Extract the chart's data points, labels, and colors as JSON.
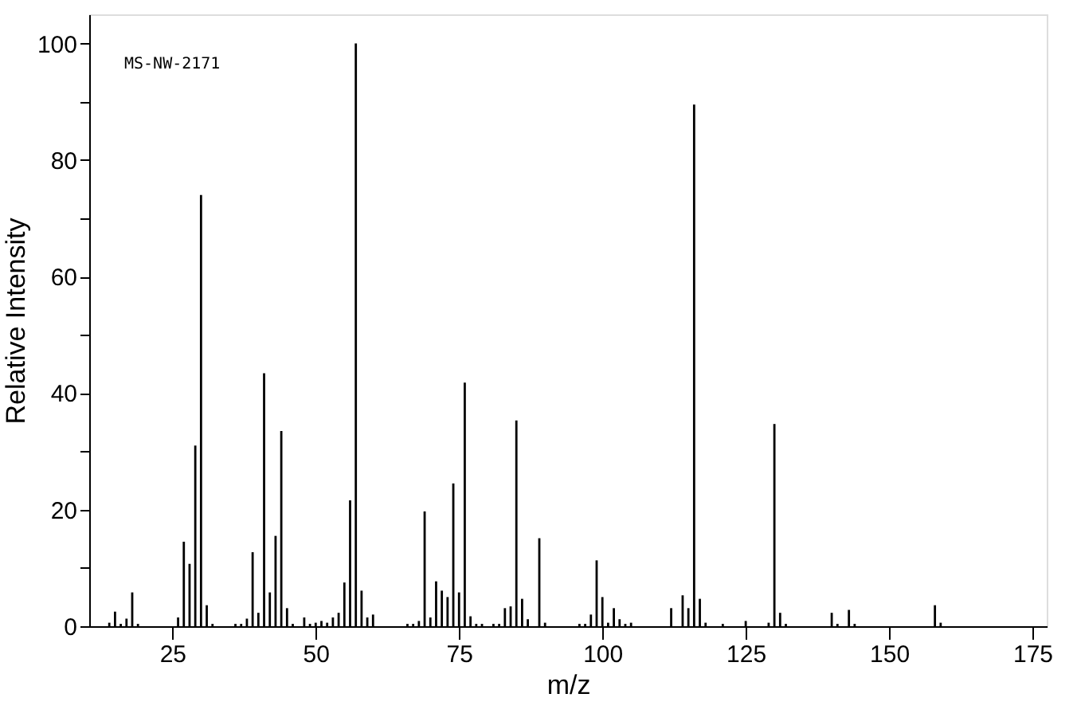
{
  "chart_data": {
    "type": "bar",
    "xlabel": "m/z",
    "ylabel": "Relative Intensity",
    "annotations": [
      "MS-NW-2171"
    ],
    "x": [
      14,
      15,
      16,
      17,
      18,
      19,
      26,
      27,
      28,
      29,
      30,
      31,
      32,
      36,
      37,
      38,
      39,
      40,
      41,
      42,
      43,
      44,
      45,
      46,
      48,
      49,
      50,
      51,
      52,
      53,
      54,
      55,
      56,
      57,
      58,
      59,
      60,
      66,
      67,
      68,
      69,
      70,
      71,
      72,
      73,
      74,
      75,
      76,
      77,
      78,
      79,
      81,
      82,
      83,
      84,
      85,
      86,
      87,
      89,
      90,
      96,
      97,
      98,
      99,
      100,
      101,
      102,
      103,
      104,
      105,
      112,
      114,
      115,
      116,
      117,
      118,
      121,
      125,
      129,
      130,
      131,
      132,
      140,
      141,
      143,
      144,
      158,
      159
    ],
    "values": [
      0.6,
      2.5,
      0.4,
      1.3,
      5.8,
      0.4,
      1.5,
      14.5,
      10.7,
      31,
      74,
      3.6,
      0.4,
      0.4,
      0.4,
      1.3,
      12.7,
      2.3,
      43.4,
      5.8,
      15.5,
      33.5,
      3.1,
      0.4,
      1.5,
      0.4,
      0.6,
      0.9,
      0.6,
      1.5,
      2.3,
      7.5,
      21.6,
      100,
      6.1,
      1.5,
      2,
      0.4,
      0.4,
      0.9,
      19.7,
      1.5,
      7.7,
      6.1,
      5,
      24.5,
      5.8,
      41.8,
      1.7,
      0.4,
      0.4,
      0.4,
      0.4,
      3.1,
      3.4,
      35.3,
      4.7,
      1.2,
      15.1,
      0.6,
      0.4,
      0.4,
      2,
      11.3,
      5,
      0.6,
      3.1,
      1.2,
      0.4,
      0.6,
      3.1,
      5.3,
      3.1,
      89.5,
      4.7,
      0.6,
      0.4,
      0.9,
      0.6,
      34.7,
      2.3,
      0.4,
      2.3,
      0.4,
      2.8,
      0.4,
      3.6,
      0.6
    ],
    "color": "#000000",
    "xlim": [
      10.5,
      177.5
    ],
    "xticks": [
      25,
      50,
      75,
      100,
      125,
      150,
      175
    ],
    "ylim": [
      0,
      105
    ],
    "yticks": [
      0,
      {
        "value": 10,
        "label": null
      },
      20,
      {
        "value": 30,
        "label": null
      },
      40,
      {
        "value": 50,
        "label": null
      },
      60,
      {
        "value": 70,
        "label": null
      },
      80,
      {
        "value": 90,
        "label": null
      },
      100
    ],
    "grid": false
  }
}
